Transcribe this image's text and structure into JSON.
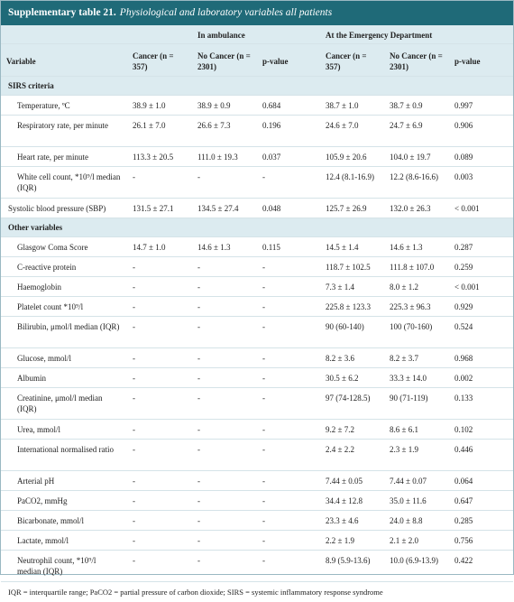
{
  "title": {
    "label": "Supplementary table 21.",
    "text": "Physiological and laboratory variables all patients"
  },
  "table": {
    "groups": [
      "In ambulance",
      "At the Emergency Department"
    ],
    "columns": [
      "Variable",
      "Cancer (n = 357)",
      "No Cancer (n = 2301)",
      "p-value",
      "Cancer (n = 357)",
      "No Cancer (n = 2301)",
      "p-value"
    ],
    "sections": [
      {
        "title": "SIRS criteria",
        "rows": [
          [
            "Temperature, ºC",
            "38.9 ± 1.0",
            "38.9 ± 0.9",
            "0.684",
            "38.7 ± 1.0",
            "38.7 ± 0.9",
            "0.997"
          ],
          [
            "Respiratory rate, per minute",
            "26.1 ± 7.0",
            "26.6 ± 7.3",
            "0.196",
            "24.6 ± 7.0",
            "24.7 ± 6.9",
            "0.906"
          ],
          [
            "Heart rate, per minute",
            "113.3 ± 20.5",
            "111.0 ± 19.3",
            "0.037",
            "105.9 ± 20.6",
            "104.0 ± 19.7",
            "0.089"
          ],
          [
            "White cell count, *10⁹/l median (IQR)",
            "-",
            "-",
            "-",
            "12.4 (8.1-16.9)",
            "12.2 (8.6-16.6)",
            "0.003"
          ],
          [
            "Systolic blood pressure (SBP)",
            "131.5 ± 27.1",
            "134.5 ± 27.4",
            "0.048",
            "125.7 ± 26.9",
            "132.0 ± 26.3",
            "< 0.001"
          ]
        ]
      },
      {
        "title": "Other variables",
        "rows": [
          [
            "Glasgow Coma Score",
            "14.7 ± 1.0",
            "14.6 ± 1.3",
            "0.115",
            "14.5 ± 1.4",
            "14.6 ± 1.3",
            "0.287"
          ],
          [
            "C-reactive protein",
            "-",
            "-",
            "-",
            "118.7 ± 102.5",
            "111.8 ± 107.0",
            "0.259"
          ],
          [
            "Haemoglobin",
            "-",
            "-",
            "-",
            "7.3 ± 1.4",
            "8.0 ± 1.2",
            "< 0.001"
          ],
          [
            "Platelet count *10⁹/l",
            "-",
            "-",
            "-",
            "225.8 ± 123.3",
            "225.3 ± 96.3",
            "0.929"
          ],
          [
            "Bilirubin, μmol/l median (IQR)",
            "-",
            "-",
            "-",
            "90 (60-140)",
            "100 (70-160)",
            "0.524"
          ],
          [
            "Glucose, mmol/l",
            "-",
            "-",
            "-",
            "8.2 ± 3.6",
            "8.2 ± 3.7",
            "0.968"
          ],
          [
            "Albumin",
            "-",
            "-",
            "-",
            "30.5 ± 6.2",
            "33.3 ± 14.0",
            "0.002"
          ],
          [
            "Creatinine, μmol/l median (IQR)",
            "-",
            "-",
            "-",
            "97 (74-128.5)",
            "90 (71-119)",
            "0.133"
          ],
          [
            "Urea, mmol/l",
            "-",
            "-",
            "-",
            "9.2 ± 7.2",
            "8.6 ± 6.1",
            "0.102"
          ],
          [
            "International normalised ratio",
            "-",
            "-",
            "-",
            "2.4 ± 2.2",
            "2.3 ± 1.9",
            "0.446"
          ],
          [
            "Arterial pH",
            "-",
            "-",
            "-",
            "7.44 ± 0.05",
            "7.44 ± 0.07",
            "0.064"
          ],
          [
            "PaCO2, mmHg",
            "-",
            "-",
            "-",
            "34.4 ± 12.8",
            "35.0 ± 11.6",
            "0.647"
          ],
          [
            "Bicarbonate, mmol/l",
            "-",
            "-",
            "-",
            "23.3 ± 4.6",
            "24.0 ± 8.8",
            "0.285"
          ],
          [
            "Lactate, mmol/l",
            "-",
            "-",
            "-",
            "2.2 ± 1.9",
            "2.1 ± 2.0",
            "0.756"
          ],
          [
            "Neutrophil count, *10⁹/l median (IQR)",
            "-",
            "-",
            "-",
            "8.9 (5.9-13.6)",
            "10.0 (6.9-13.9)",
            "0.422"
          ]
        ]
      }
    ]
  },
  "footnote": "IQR = interquartile range; PaCO2 = partial pressure of carbon dioxide; SIRS = systemic inflammatory response syndrome"
}
